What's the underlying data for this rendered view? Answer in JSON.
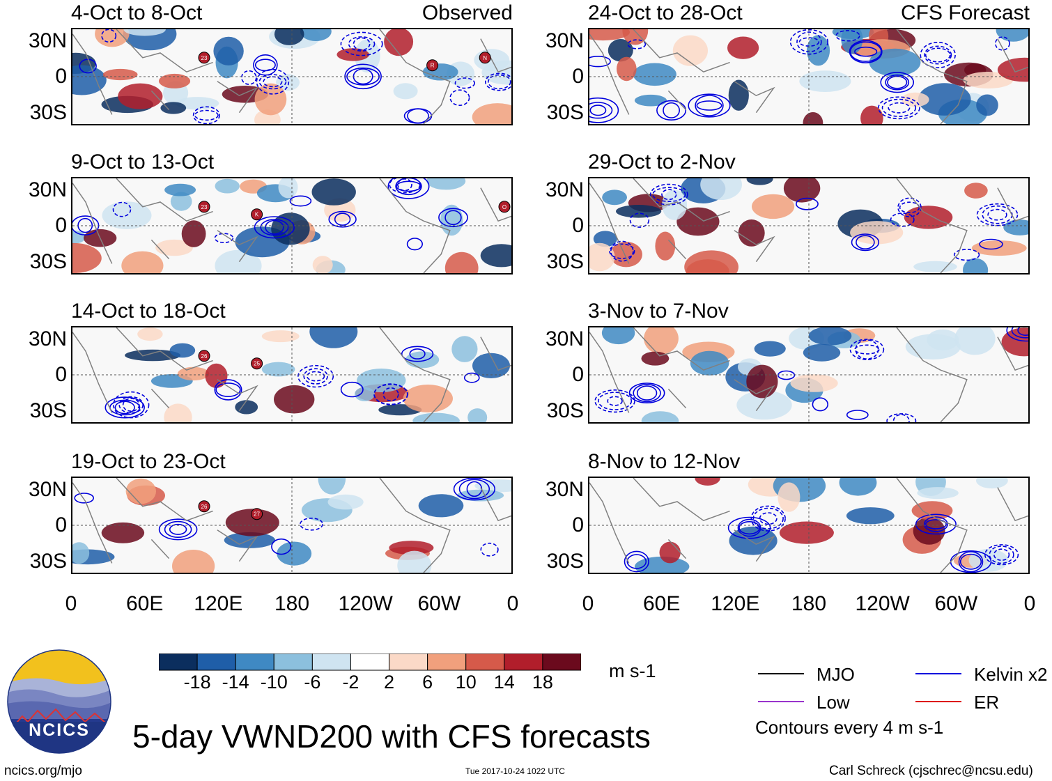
{
  "figure": {
    "title": "5-day VWND200 with CFS forecasts",
    "observed_label": "Observed",
    "forecast_label": "CFS Forecast",
    "unit": "m s-1",
    "contour_note": "Contours every 4 m s-1",
    "footer_left": "ncics.org/mjo",
    "footer_center": "Tue 2017-10-24 1022 UTC",
    "footer_right": "Carl Schreck (cjschrec@ncsu.edu)",
    "logo_text": "NCICS"
  },
  "chart_data": {
    "type": "heatmap",
    "variable": "VWND200 anomaly",
    "lat_ticks": [
      "30N",
      "0",
      "30S"
    ],
    "lon_ticks": [
      "0",
      "60E",
      "120E",
      "180",
      "120W",
      "60W",
      "0"
    ],
    "colorbar": {
      "ticks": [
        "-18",
        "-14",
        "-10",
        "-6",
        "-2",
        "2",
        "6",
        "10",
        "14",
        "18"
      ],
      "colors": [
        "#0b2e5e",
        "#1f5ea8",
        "#3f89c3",
        "#8cc0de",
        "#cfe4f1",
        "#ffffff",
        "#fbd9c7",
        "#f1a07d",
        "#d65a4a",
        "#b11e2b",
        "#6b0a1d"
      ]
    },
    "observed_panels": [
      {
        "period": "4-Oct to 8-Oct",
        "storm_markers": [
          "23",
          "R",
          "N"
        ]
      },
      {
        "period": "9-Oct to 13-Oct",
        "storm_markers": [
          "23",
          "K",
          "O"
        ]
      },
      {
        "period": "14-Oct to 18-Oct",
        "storm_markers": [
          "26",
          "25"
        ]
      },
      {
        "period": "19-Oct to 23-Oct",
        "storm_markers": [
          "26",
          "27"
        ]
      }
    ],
    "forecast_panels": [
      {
        "period": "24-Oct to 28-Oct"
      },
      {
        "period": "29-Oct to 2-Nov"
      },
      {
        "period": "3-Nov to 7-Nov"
      },
      {
        "period": "8-Nov to 12-Nov"
      }
    ],
    "legend": [
      {
        "label": "MJO",
        "color": "#000000"
      },
      {
        "label": "Kelvin x2",
        "color": "#0000dd"
      },
      {
        "label": "Low",
        "color": "#9933cc"
      },
      {
        "label": "ER",
        "color": "#dd0000"
      }
    ]
  }
}
